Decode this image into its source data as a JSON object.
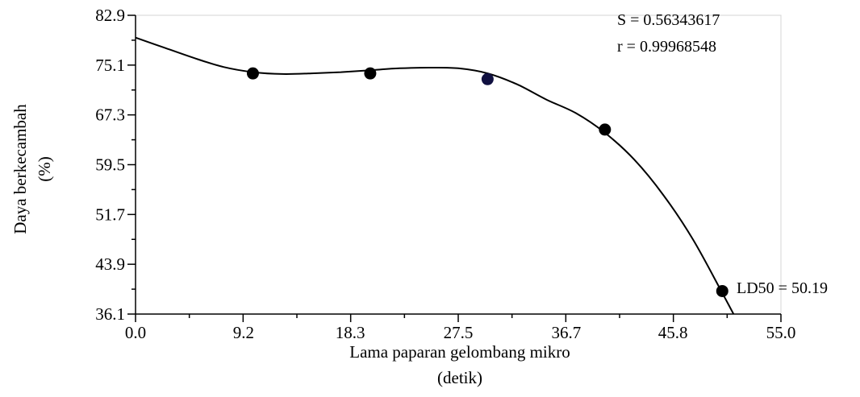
{
  "chart_data": {
    "type": "scatter",
    "xlabel": [
      "Lama paparan gelombang mikro",
      "(detik)"
    ],
    "ylabel": [
      "Daya berkecambah",
      "(%)"
    ],
    "xlim": [
      0.0,
      55.0
    ],
    "ylim": [
      36.1,
      82.9
    ],
    "xticks": [
      "0.0",
      "9.2",
      "18.3",
      "27.5",
      "36.7",
      "45.8",
      "55.0"
    ],
    "yticks": [
      "82.9",
      "75.1",
      "67.3",
      "59.5",
      "51.7",
      "43.9",
      "36.1"
    ],
    "grid": false,
    "points": {
      "x": [
        10.0,
        20.0,
        30.0,
        40.0,
        50.0
      ],
      "y": [
        73.8,
        73.8,
        72.9,
        65.0,
        39.7
      ],
      "colors": [
        "#000000",
        "#000000",
        "#101040",
        "#000000",
        "#000000"
      ]
    },
    "fit_curve": {
      "x": [
        0,
        2.5,
        5,
        7.5,
        10,
        12.5,
        15,
        17.5,
        20,
        22.5,
        25,
        27.5,
        30,
        32.5,
        35,
        37.5,
        40,
        42.5,
        45,
        47.5,
        50,
        52.0
      ],
      "y": [
        79.4,
        77.8,
        76.2,
        74.8,
        74.0,
        73.7,
        73.8,
        74.0,
        74.3,
        74.6,
        74.7,
        74.6,
        73.8,
        72.1,
        69.7,
        67.6,
        64.5,
        60.3,
        54.7,
        47.8,
        39.4,
        32.5
      ]
    },
    "annotations": {
      "stat_s": "S = 0.56343617",
      "stat_r": "r = 0.99968548",
      "ld50": "LD50 = 50.19"
    }
  }
}
